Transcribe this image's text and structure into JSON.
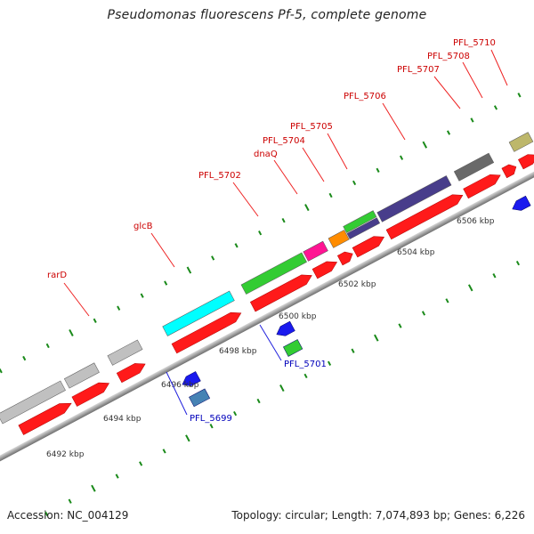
{
  "title": "Pseudomonas fluorescens Pf-5, complete genome",
  "footer": {
    "accession": "Accession: NC_004129",
    "summary": "Topology: circular; Length: 7,074,893 bp; Genes: 6,226"
  },
  "colors": {
    "backbone": "#8c8c8c",
    "tick": "#1a8a1a",
    "cds_forward": "#ff1a1a",
    "cds_reverse": "#1a1aee",
    "label_forward_line": "#ee2222",
    "label_reverse_line": "#2222dd"
  },
  "scale": {
    "kbp_labels": [
      "6492 kbp",
      "6494 kbp",
      "6496 kbp",
      "6498 kbp",
      "6500 kbp",
      "6502 kbp",
      "6504 kbp",
      "6506 kbp"
    ]
  },
  "genes": {
    "forward": [
      {
        "name": "rarD",
        "color": "#ff1f1f"
      },
      {
        "name": "glcB",
        "color": "#00ffff"
      },
      {
        "name": "PFL_5702",
        "color": "#33cc33"
      },
      {
        "name": "dnaQ",
        "color": "#ff1493"
      },
      {
        "name": "PFL_5704",
        "color": "#ff8c00"
      },
      {
        "name": "PFL_5705",
        "color": "#33cc33"
      },
      {
        "name": "PFL_5706",
        "color": "#483d8b"
      },
      {
        "name": "PFL_5707",
        "color": "#696969"
      },
      {
        "name": "PFL_5708",
        "color": "#ff1f1f"
      },
      {
        "name": "PFL_5710",
        "color": "#bdb76b"
      }
    ],
    "reverse": [
      {
        "name": "PFL_5699",
        "color": "#4682b4"
      },
      {
        "name": "PFL_5701",
        "color": "#33cc33"
      }
    ]
  }
}
